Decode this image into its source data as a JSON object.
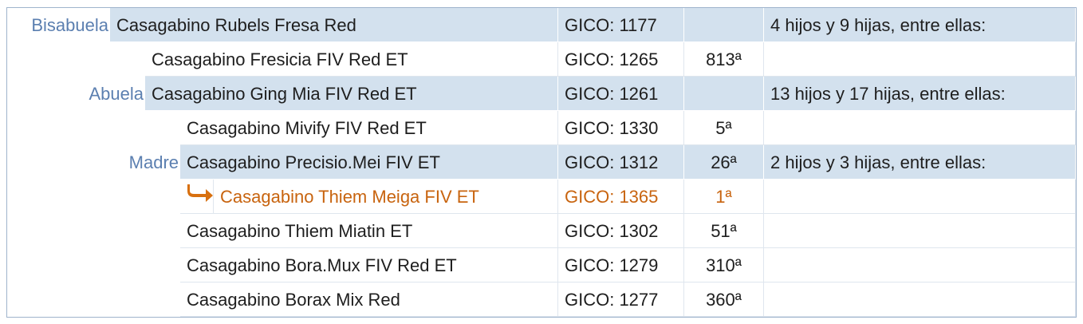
{
  "table": {
    "rows": [
      {
        "label": "Bisabuela",
        "name": "Casagabino Rubels Fresa Red",
        "gico": "GICO: 1177",
        "note": "4 hijos y 9 hijas, entre ellas:"
      },
      {
        "name": "Casagabino Fresicia FIV Red ET",
        "gico": "GICO: 1265",
        "rank": "813ª"
      },
      {
        "label": "Abuela",
        "name": "Casagabino Ging Mia FIV Red ET",
        "gico": "GICO: 1261",
        "note": "13 hijos y 17 hijas, entre ellas:"
      },
      {
        "name": "Casagabino Mivify FIV Red ET",
        "gico": "GICO: 1330",
        "rank": "5ª"
      },
      {
        "label": "Madre",
        "name": "Casagabino Precisio.Mei FIV ET",
        "gico": "GICO: 1312",
        "rank": "26ª",
        "note": "2 hijos y 3 hijas, entre ellas:"
      },
      {
        "name": "Casagabino Thiem Meiga FIV ET",
        "gico": "GICO: 1365",
        "rank": "1ª"
      },
      {
        "name": "Casagabino Thiem Miatin ET",
        "gico": "GICO: 1302",
        "rank": "51ª"
      },
      {
        "name": "Casagabino Bora.Mux FIV Red ET",
        "gico": "GICO: 1279",
        "rank": "310ª"
      },
      {
        "name": "Casagabino Borax Mix Red",
        "gico": "GICO: 1277",
        "rank": "360ª"
      }
    ]
  }
}
